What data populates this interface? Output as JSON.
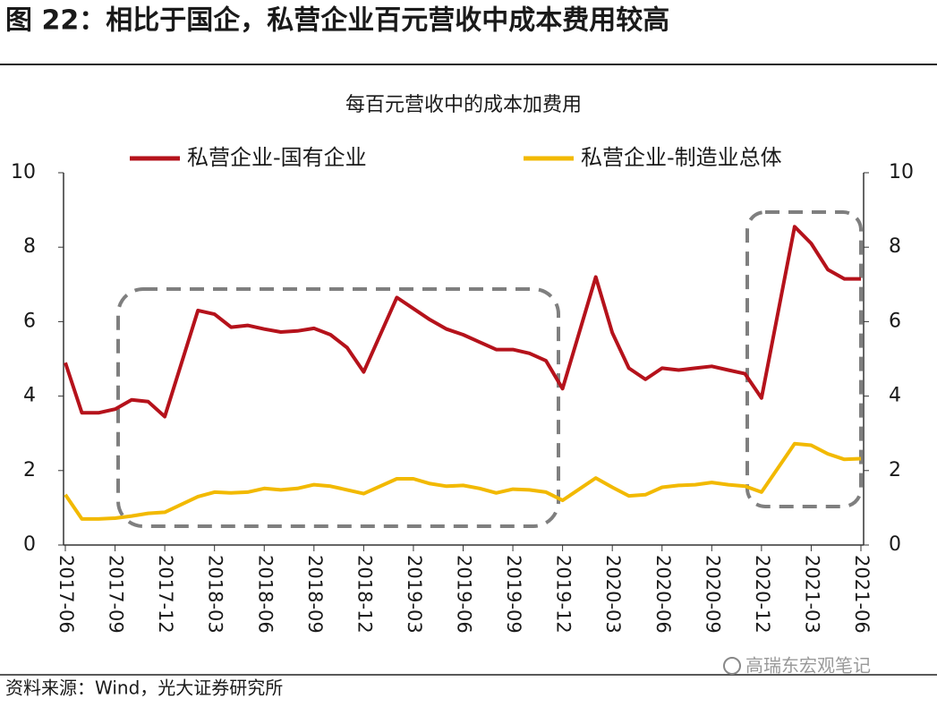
{
  "header": {
    "title": "图 22：相比于国企，私营企业百元营收中成本费用较高"
  },
  "chart_data": {
    "type": "line",
    "title": "每百元营收中的成本加费用",
    "x": [
      "2017-06",
      "2017-07",
      "2017-08",
      "2017-09",
      "2017-10",
      "2017-11",
      "2017-12",
      "2018-02",
      "2018-03",
      "2018-04",
      "2018-05",
      "2018-06",
      "2018-07",
      "2018-08",
      "2018-09",
      "2018-10",
      "2018-11",
      "2018-12",
      "2019-02",
      "2019-03",
      "2019-04",
      "2019-05",
      "2019-06",
      "2019-07",
      "2019-08",
      "2019-09",
      "2019-10",
      "2019-11",
      "2019-12",
      "2020-02",
      "2020-03",
      "2020-04",
      "2020-05",
      "2020-06",
      "2020-07",
      "2020-08",
      "2020-09",
      "2020-10",
      "2020-11",
      "2020-12",
      "2021-02",
      "2021-03",
      "2021-04",
      "2021-05",
      "2021-06"
    ],
    "series": [
      {
        "name": "私营企业-国有企业",
        "color": "#b5121b",
        "values": [
          4.9,
          3.55,
          3.55,
          3.65,
          3.9,
          3.85,
          3.45,
          6.3,
          6.2,
          5.85,
          5.9,
          5.8,
          5.72,
          5.75,
          5.82,
          5.65,
          5.3,
          4.65,
          6.65,
          6.35,
          6.05,
          5.8,
          5.65,
          5.45,
          5.25,
          5.25,
          5.15,
          4.95,
          4.2,
          7.2,
          5.7,
          4.75,
          4.45,
          4.75,
          4.7,
          4.75,
          4.8,
          4.7,
          4.6,
          3.95,
          8.55,
          8.1,
          7.4,
          7.15,
          7.15
        ]
      },
      {
        "name": "私营企业-制造业总体",
        "color": "#f2b900",
        "values": [
          1.35,
          0.7,
          0.7,
          0.72,
          0.78,
          0.85,
          0.88,
          1.3,
          1.42,
          1.4,
          1.42,
          1.52,
          1.48,
          1.52,
          1.62,
          1.58,
          1.48,
          1.38,
          1.78,
          1.78,
          1.65,
          1.58,
          1.6,
          1.52,
          1.4,
          1.5,
          1.48,
          1.42,
          1.2,
          1.8,
          1.55,
          1.32,
          1.35,
          1.55,
          1.6,
          1.62,
          1.68,
          1.62,
          1.58,
          1.42,
          2.72,
          2.68,
          2.45,
          2.3,
          2.32
        ]
      }
    ],
    "xlim": [
      "2017-06",
      "2021-06"
    ],
    "xticks": [
      "2017-06",
      "2017-09",
      "2017-12",
      "2018-03",
      "2018-06",
      "2018-09",
      "2018-12",
      "2019-03",
      "2019-06",
      "2019-09",
      "2019-12",
      "2020-03",
      "2020-06",
      "2020-09",
      "2020-12",
      "2021-03",
      "2021-06"
    ],
    "ylim": [
      0,
      10
    ],
    "yticks": [
      0,
      2,
      4,
      6,
      8,
      10
    ],
    "y2lim": [
      0,
      10
    ],
    "y2ticks": [
      0,
      2,
      4,
      6,
      8,
      10
    ],
    "legend": "top",
    "grid": false
  },
  "footer": {
    "source": "资料来源：Wind，光大证券研究所",
    "watermark": "高瑞东宏观笔记"
  }
}
